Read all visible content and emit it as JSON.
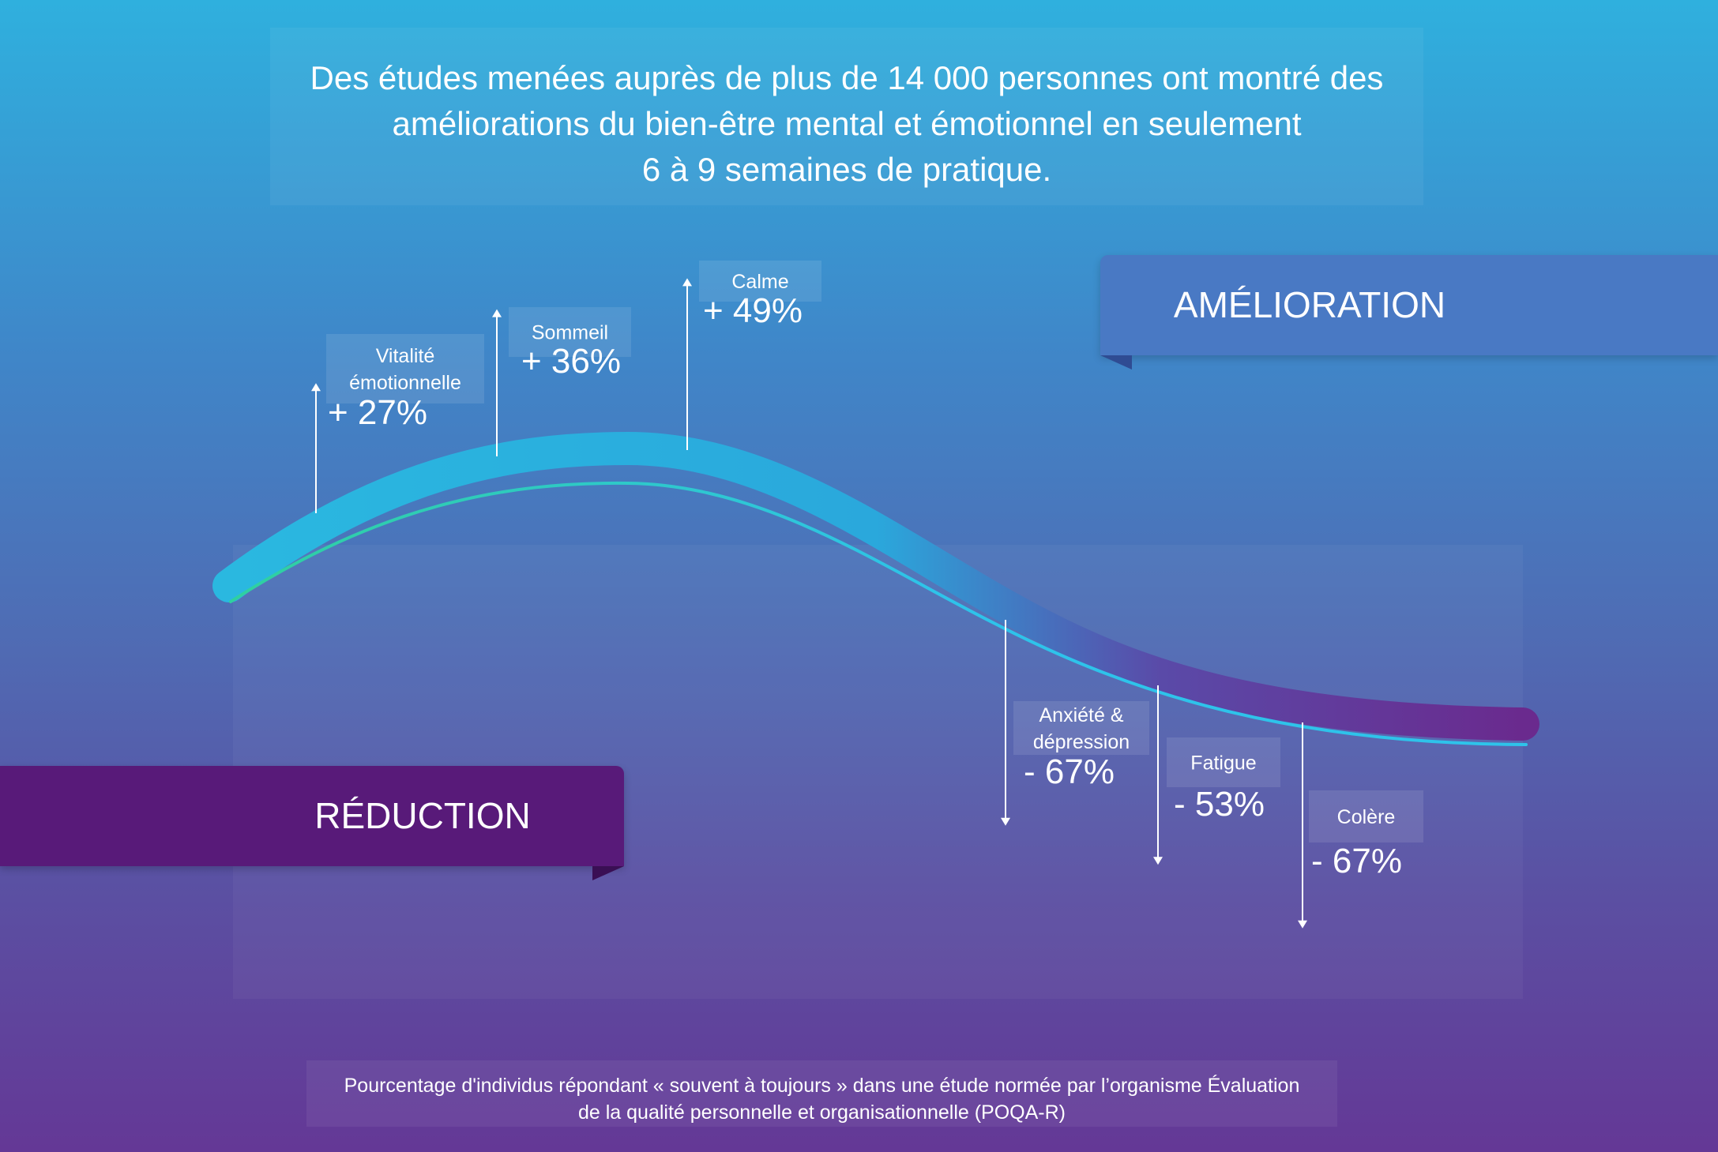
{
  "headline": {
    "line1": "Des études menées auprès de plus de 14 000 personnes ont montré des",
    "line2": "améliorations du bien-être mental et émotionnel en seulement",
    "line3": "6 à 9 semaines de pratique."
  },
  "ribbons": {
    "improvement": "AMÉLIORATION",
    "reduction": "RÉDUCTION"
  },
  "caption": {
    "line1": "Pourcentage d'individus répondant « souvent à toujours » dans une étude normée par l’organisme Évaluation",
    "line2": "de la qualité personnelle et organisationnelle (POQA-R)"
  },
  "colors": {
    "improvement_ribbon": "#4979c4",
    "reduction_ribbon": "#581a79",
    "curve_start": "#2ab8e0",
    "curve_end": "#6a2a8e",
    "inner_line_green": "#2fd0a0",
    "inner_line_cyan": "#2ec3ea"
  },
  "chart_data": {
    "type": "bar",
    "series": [
      {
        "name": "AMÉLIORATION",
        "direction": "up",
        "categories": [
          "Vitalité émotionnelle",
          "Sommeil",
          "Calme"
        ],
        "value_labels": [
          "+ 27%",
          "+ 36%",
          "+ 49%"
        ],
        "values": [
          27,
          36,
          49
        ]
      },
      {
        "name": "RÉDUCTION",
        "direction": "down",
        "categories": [
          "Anxiété & dépression",
          "Fatigue",
          "Colère"
        ],
        "value_labels": [
          "- 67%",
          "- 53%",
          "- 67%"
        ],
        "values": [
          -67,
          -53,
          -67
        ]
      }
    ],
    "items": [
      {
        "label_lines": [
          "Vitalité",
          "émotionnelle"
        ],
        "value_label": "+ 27%",
        "value": 27
      },
      {
        "label_lines": [
          "Sommeil"
        ],
        "value_label": "+ 36%",
        "value": 36
      },
      {
        "label_lines": [
          "Calme"
        ],
        "value_label": "+ 49%",
        "value": 49
      },
      {
        "label_lines": [
          "Anxiété &",
          "dépression"
        ],
        "value_label": "- 67%",
        "value": -67
      },
      {
        "label_lines": [
          "Fatigue"
        ],
        "value_label": "- 53%",
        "value": -53
      },
      {
        "label_lines": [
          "Colère"
        ],
        "value_label": "- 67%",
        "value": -67
      }
    ]
  }
}
